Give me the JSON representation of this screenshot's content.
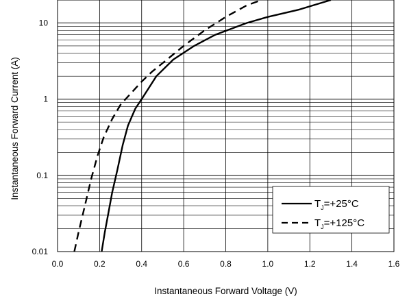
{
  "chart_data": {
    "type": "line",
    "title": "",
    "xlabel": "Instantaneous Forward Voltage (V)",
    "ylabel": "Instantaneous Forward Current (A)",
    "xlim": [
      0.0,
      1.6
    ],
    "ylim": [
      0.01,
      20
    ],
    "y_scale": "log",
    "grid": true,
    "legend_position": "bottom-right",
    "x_ticks": [
      "0.0",
      "0.2",
      "0.4",
      "0.6",
      "0.8",
      "1.0",
      "1.2",
      "1.4",
      "1.6"
    ],
    "y_ticks": [
      "0.01",
      "0.1",
      "1",
      "10"
    ],
    "series": [
      {
        "name": "T_J=+25°C",
        "label_main": "T",
        "label_sub": "J",
        "label_tail": "=+25°C",
        "style": "solid",
        "color": "#000000",
        "x": [
          0.21,
          0.225,
          0.24,
          0.26,
          0.285,
          0.31,
          0.335,
          0.37,
          0.4,
          0.47,
          0.55,
          0.65,
          0.75,
          0.9,
          1.0,
          1.15,
          1.3
        ],
        "y": [
          0.01,
          0.018,
          0.03,
          0.06,
          0.12,
          0.25,
          0.45,
          0.75,
          1.0,
          2.0,
          3.3,
          5.0,
          7.0,
          10.0,
          12.0,
          15.0,
          20.0
        ]
      },
      {
        "name": "T_J=+125°C",
        "label_main": "T",
        "label_sub": "J",
        "label_tail": "=+125°C",
        "style": "dashed",
        "color": "#000000",
        "x": [
          0.08,
          0.1,
          0.13,
          0.16,
          0.19,
          0.22,
          0.26,
          0.3,
          0.35,
          0.4,
          0.45,
          0.52,
          0.6,
          0.7,
          0.8,
          0.9,
          0.97
        ],
        "y": [
          0.01,
          0.018,
          0.04,
          0.09,
          0.18,
          0.32,
          0.55,
          0.85,
          1.2,
          1.7,
          2.3,
          3.3,
          5.0,
          8.0,
          12.0,
          17.0,
          20.0
        ]
      }
    ]
  }
}
